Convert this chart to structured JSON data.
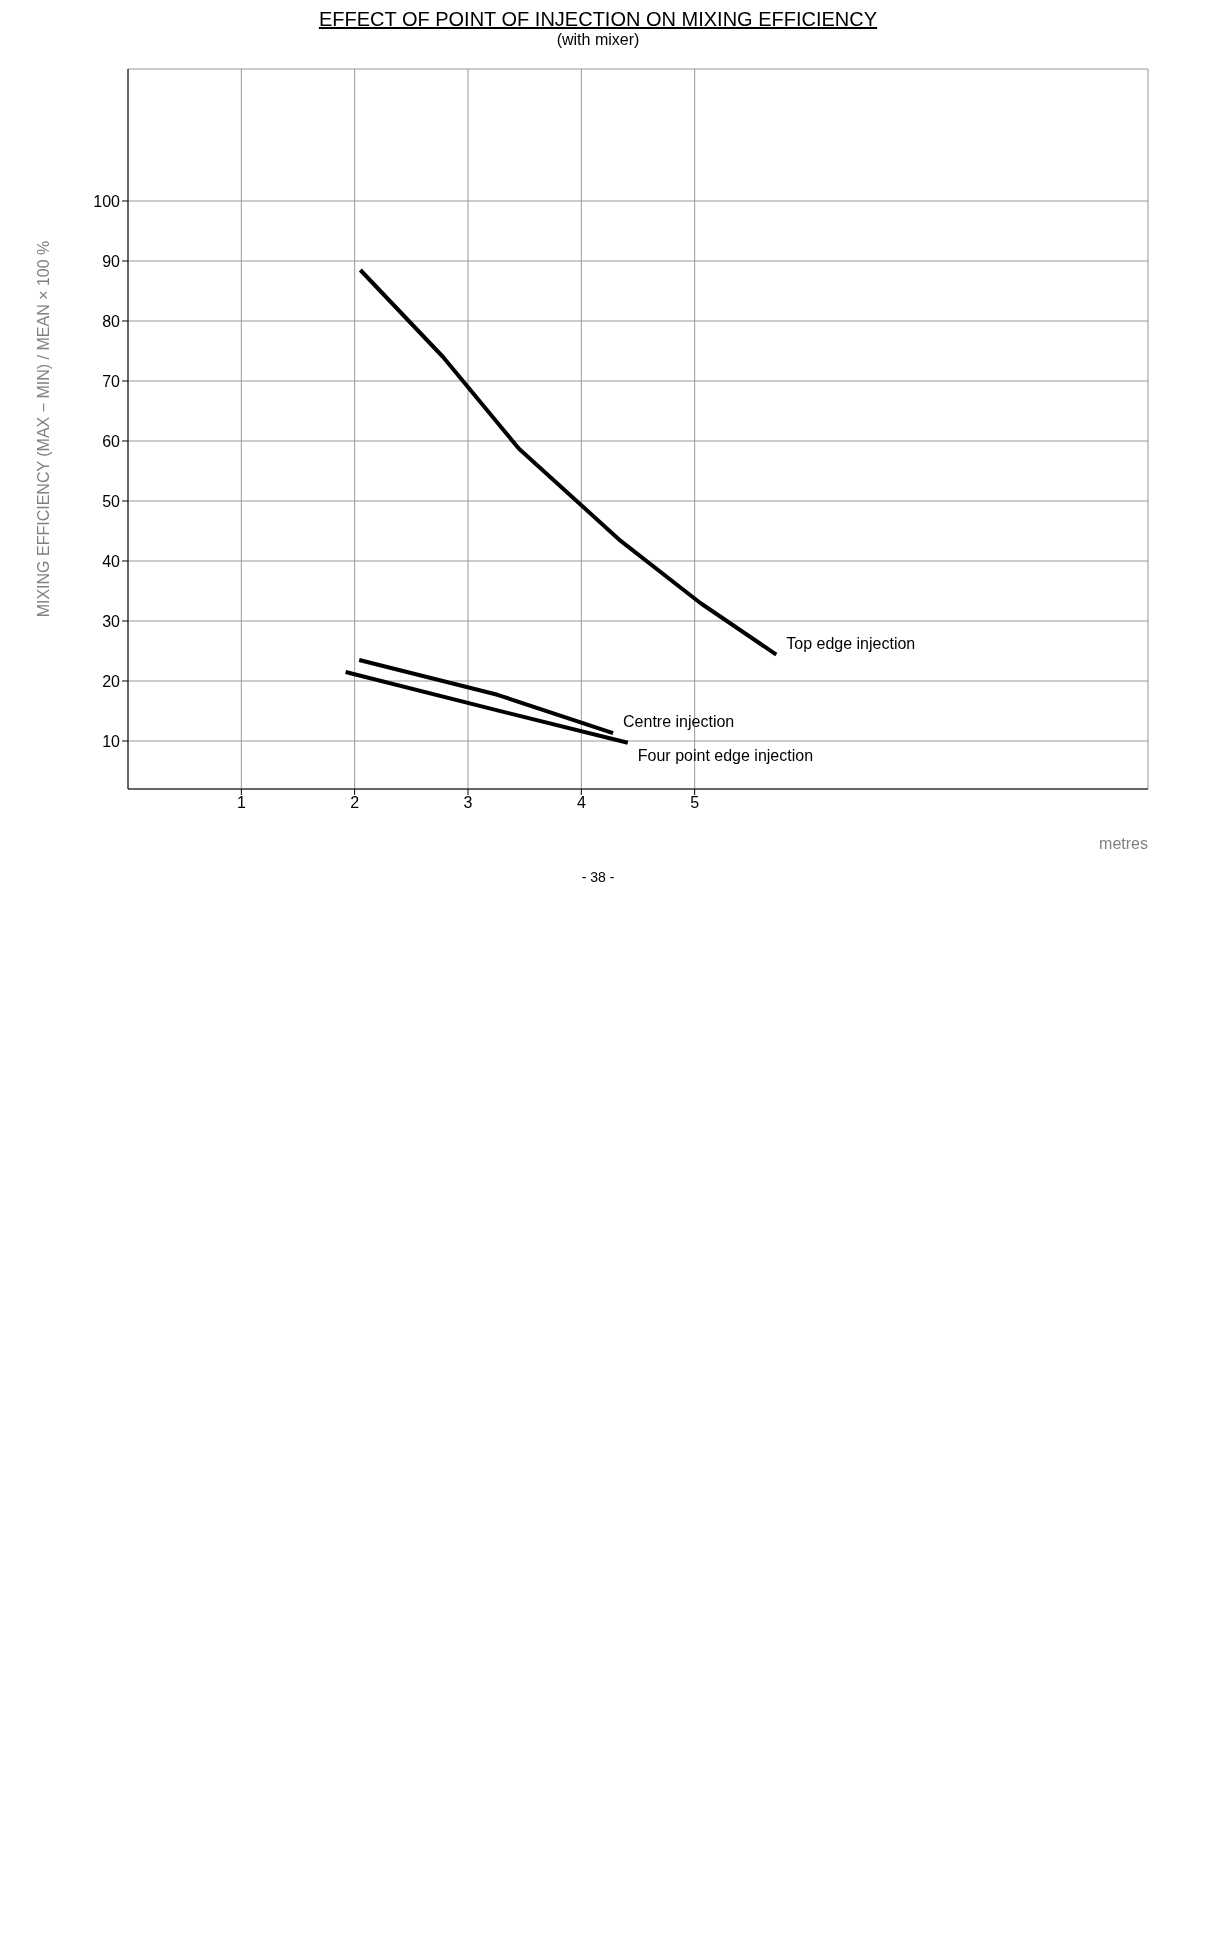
{
  "chart_data": {
    "type": "line",
    "title": "EFFECT OF POINT OF INJECTION ON MIXING EFFICIENCY",
    "subtitle": "(with mixer)",
    "xlabel": "metres",
    "ylabel": "MIXING EFFICIENCY (MAX − MIN) / MEAN × 100 %",
    "annotations": [
      "- 38 -"
    ],
    "xlim": [
      0,
      9
    ],
    "xticks": [
      1,
      2,
      3,
      4,
      5
    ],
    "ylim": [
      2,
      122
    ],
    "yticks": [
      10,
      20,
      30,
      40,
      50,
      60,
      70,
      80,
      90,
      100
    ],
    "grid": true,
    "marker": "none",
    "line_style": "solid",
    "series": [
      {
        "name": "Top edge injection",
        "color": "#000000",
        "x": [
          2.05,
          2.78,
          3.45,
          4.35,
          5.05,
          5.72
        ],
        "values": [
          88.5,
          74,
          58.7,
          43.3,
          33,
          24.4
        ]
      },
      {
        "name": "Centre injection",
        "color": "#000000",
        "x": [
          2.04,
          3.26,
          4.28
        ],
        "values": [
          23.5,
          17.7,
          11.3
        ]
      },
      {
        "name": "Four point edge injection",
        "color": "#000000",
        "x": [
          1.92,
          3.26,
          4.41
        ],
        "values": [
          21.5,
          15.1,
          9.7
        ]
      }
    ]
  }
}
